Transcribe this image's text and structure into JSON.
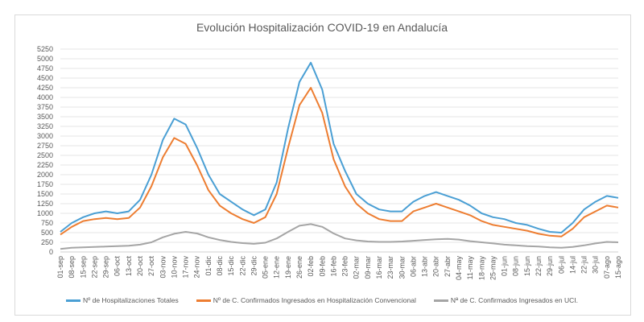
{
  "chart_data": {
    "type": "line",
    "title": "Evolución Hospitalización COVID-19 en Andalucía",
    "xlabel": "",
    "ylabel": "",
    "ylim": [
      0,
      5250
    ],
    "yticks": [
      0,
      250,
      500,
      750,
      1000,
      1250,
      1500,
      1750,
      2000,
      2250,
      2500,
      2750,
      3000,
      3250,
      3500,
      3750,
      4000,
      4250,
      4500,
      4750,
      5000,
      5250
    ],
    "grid": true,
    "legend_position": "bottom",
    "categories": [
      "01-sep",
      "08-sep",
      "15-sep",
      "22-sep",
      "29-sep",
      "06-oct",
      "13-oct",
      "20-oct",
      "27-oct",
      "03-nov",
      "10-nov",
      "17-nov",
      "24-nov",
      "01-dic",
      "08-dic",
      "15-dic",
      "22-dic",
      "29-dic",
      "05-ene",
      "12-ene",
      "19-ene",
      "26-ene",
      "02-feb",
      "09-feb",
      "16-feb",
      "23-feb",
      "02-mar",
      "09-mar",
      "16-mar",
      "23-mar",
      "30-mar",
      "06-abr",
      "13-abr",
      "20-abr",
      "27-abr",
      "04-may",
      "11-may",
      "18-may",
      "25-may",
      "01-jun",
      "08-jun",
      "15-jun",
      "22-jun",
      "29-jun",
      "06-jul",
      "14-jul",
      "22-jul",
      "30-jul",
      "07-ago",
      "15-ago"
    ],
    "series": [
      {
        "name": "Nº de Hospitalizaciones Totales",
        "color": "#4a9fd4",
        "values": [
          520,
          750,
          900,
          1000,
          1050,
          1000,
          1050,
          1350,
          2000,
          2900,
          3450,
          3300,
          2700,
          2000,
          1500,
          1300,
          1100,
          950,
          1100,
          1800,
          3200,
          4400,
          4900,
          4200,
          2800,
          2100,
          1500,
          1250,
          1100,
          1050,
          1050,
          1300,
          1450,
          1550,
          1450,
          1350,
          1200,
          1000,
          900,
          850,
          750,
          700,
          600,
          520,
          500,
          750,
          1100,
          1300,
          1450,
          1400
        ]
      },
      {
        "name": "Nº de C. Confirmados Ingresados en Hospitalización Convencional",
        "color": "#ed7d31",
        "values": [
          450,
          650,
          800,
          850,
          880,
          850,
          880,
          1150,
          1700,
          2450,
          2950,
          2800,
          2250,
          1600,
          1200,
          1000,
          850,
          750,
          900,
          1500,
          2700,
          3800,
          4250,
          3600,
          2400,
          1700,
          1250,
          1000,
          850,
          800,
          800,
          1050,
          1150,
          1250,
          1150,
          1050,
          950,
          800,
          700,
          650,
          600,
          550,
          470,
          420,
          400,
          600,
          900,
          1050,
          1200,
          1150
        ]
      },
      {
        "name": "Nª de C. Confirmados Ingresados en UCI.",
        "color": "#a5a5a5",
        "values": [
          80,
          110,
          120,
          130,
          140,
          150,
          160,
          190,
          250,
          380,
          470,
          520,
          480,
          380,
          310,
          260,
          230,
          210,
          240,
          350,
          520,
          680,
          720,
          650,
          480,
          350,
          300,
          270,
          260,
          260,
          270,
          290,
          310,
          330,
          340,
          320,
          280,
          250,
          220,
          190,
          170,
          150,
          140,
          120,
          110,
          130,
          170,
          220,
          260,
          250
        ]
      }
    ]
  }
}
